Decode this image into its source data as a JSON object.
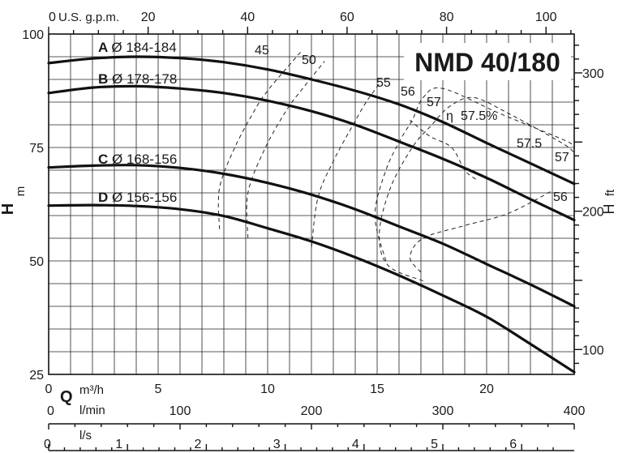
{
  "chart_data": {
    "type": "line",
    "title": "NMD 40/180",
    "x_axis": {
      "symbol": "Q",
      "unit": "m³/h",
      "range": [
        0,
        24
      ],
      "ticks": [
        0,
        5,
        10,
        15,
        20
      ]
    },
    "y_axis_left": {
      "label": "H",
      "unit": "m",
      "range": [
        25,
        100
      ],
      "ticks": [
        25,
        50,
        75,
        100
      ]
    },
    "y_axis_right": {
      "label": "H",
      "unit": "ft",
      "ticks": [
        100,
        200,
        300
      ]
    },
    "top_axis": {
      "label": "U.S. g.p.m.",
      "ticks": [
        0,
        20,
        40,
        60,
        80,
        100
      ]
    },
    "lmin_axis": {
      "label": "l/min",
      "ticks": [
        0,
        100,
        200,
        300,
        400
      ]
    },
    "ls_axis": {
      "label": "l/s",
      "ticks": [
        0,
        1,
        2,
        3,
        4,
        5,
        6
      ]
    },
    "grid": true,
    "series": [
      {
        "letter": "A",
        "name": "Ø 184-184",
        "x": [
          0,
          2,
          4,
          6,
          8,
          10,
          12,
          14,
          16,
          18,
          20,
          22,
          24
        ],
        "y": [
          93.6,
          94.6,
          95.0,
          94.7,
          93.8,
          92.2,
          90.0,
          87.5,
          84.5,
          80.6,
          76.0,
          71.5,
          67.0
        ]
      },
      {
        "letter": "B",
        "name": "Ø 178-178",
        "x": [
          0,
          2,
          4,
          6,
          8,
          10,
          12,
          14,
          16,
          18,
          20,
          22,
          24
        ],
        "y": [
          87.0,
          88.2,
          88.5,
          88.0,
          87.0,
          85.3,
          83.0,
          80.0,
          76.3,
          72.5,
          68.3,
          63.6,
          59.0
        ]
      },
      {
        "letter": "C",
        "name": "Ø 168-156",
        "x": [
          0,
          2,
          4,
          6,
          8,
          10,
          12,
          14,
          16,
          18,
          20,
          22,
          24
        ],
        "y": [
          70.6,
          71.0,
          71.1,
          70.5,
          69.2,
          67.2,
          64.6,
          61.4,
          57.6,
          53.8,
          49.3,
          44.8,
          40.0
        ]
      },
      {
        "letter": "D",
        "name": "Ø 156-156",
        "x": [
          0,
          2,
          4,
          6,
          8,
          10,
          12,
          14,
          16,
          18,
          20,
          22,
          24
        ],
        "y": [
          62.2,
          62.3,
          62.1,
          61.4,
          59.9,
          57.2,
          54.3,
          50.8,
          46.8,
          42.4,
          37.7,
          31.7,
          25.5
        ]
      }
    ],
    "efficiency_curves": [
      {
        "label": "45",
        "points": [
          [
            7.8,
            57
          ],
          [
            7.8,
            66
          ],
          [
            8.5,
            75
          ],
          [
            9.5,
            84
          ],
          [
            10.0,
            87.5
          ],
          [
            10.6,
            91
          ],
          [
            11.5,
            96
          ]
        ]
      },
      {
        "label": "50",
        "points": [
          [
            9.1,
            55
          ],
          [
            9.1,
            65
          ],
          [
            9.9,
            75
          ],
          [
            10.9,
            83.5
          ],
          [
            11.6,
            88
          ],
          [
            12.6,
            94
          ]
        ]
      },
      {
        "label": "55",
        "points": [
          [
            12.0,
            53
          ],
          [
            12.3,
            64
          ],
          [
            13.0,
            72
          ],
          [
            13.9,
            80
          ],
          [
            14.5,
            85
          ],
          [
            15.1,
            89
          ]
        ]
      },
      {
        "label": "56",
        "points": [
          [
            15.4,
            50
          ],
          [
            14.9,
            60
          ],
          [
            15.4,
            70
          ],
          [
            16.1,
            77
          ],
          [
            16.6,
            81
          ],
          [
            17.1,
            86
          ],
          [
            18.0,
            88
          ],
          [
            20.6,
            82.5
          ],
          [
            23.6,
            76.5
          ],
          [
            24,
            75
          ]
        ]
      },
      {
        "label": "57",
        "points": [
          [
            17.1,
            45.6
          ],
          [
            15.5,
            49
          ],
          [
            15.1,
            56
          ],
          [
            15.6,
            66
          ],
          [
            16.6,
            75
          ],
          [
            17.5,
            80
          ],
          [
            18.3,
            84
          ],
          [
            19.4,
            86
          ],
          [
            21.0,
            82.5
          ],
          [
            23.5,
            75.8
          ],
          [
            24,
            73.7
          ]
        ]
      },
      {
        "label": "57.5",
        "points": [
          [
            17.0,
            47.5
          ],
          [
            16.5,
            50.8
          ],
          [
            17.1,
            55
          ],
          [
            19.0,
            57.8
          ],
          [
            21.0,
            60.5
          ],
          [
            23.0,
            65.5
          ]
        ]
      },
      {
        "label": "57.5%",
        "points": [
          [
            19.5,
            68
          ],
          [
            19.0,
            70
          ],
          [
            18.4,
            75
          ],
          [
            17.4,
            77.5
          ],
          [
            16.5,
            81
          ]
        ]
      }
    ],
    "efficiency_symbol": "η"
  }
}
